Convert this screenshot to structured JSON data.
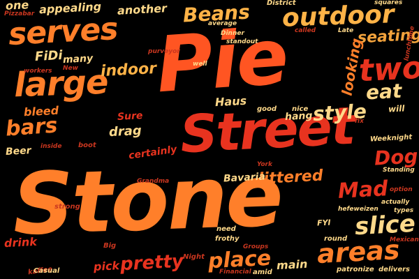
{
  "palette": {
    "background": "#000000",
    "orange": "#ff7f2a",
    "red_orange": "#ff5522",
    "red": "#e8331f",
    "light_yellow": "#ffd98a",
    "light_orange": "#ffb347",
    "dark_red": "#c9361f",
    "amber": "#f2a23c"
  },
  "words": {
    "stone": "Stone",
    "pie": "Pie",
    "street": "Street",
    "serves": "serves",
    "large": "large",
    "outdoor": "outdoor",
    "two": "two",
    "slice": "slice",
    "areas": "areas",
    "place": "place",
    "pretty": "pretty",
    "bars": "bars",
    "beans": "Beans",
    "mad": "Mad",
    "dog": "Dog",
    "style": "style",
    "eat": "eat",
    "littered": "littered",
    "indoor": "indoor",
    "seating": "seating",
    "looking": "looking",
    "district": "District",
    "another": "another",
    "appealing": "appealing",
    "one": "one",
    "pizzabar": "Pizzabar",
    "fidi": "FiDi",
    "many": "many",
    "workers": "workers",
    "new": "New",
    "bleed": "bleed",
    "sure": "Sure",
    "drag": "drag",
    "beer": "Beer",
    "inside": "inside",
    "boot": "boot",
    "certainly": "certainly",
    "grandma": "Grandma",
    "strong": "strong",
    "drink": "drink",
    "big": "Big",
    "pick": "pick",
    "casual": "Casual",
    "kaffee": "kaffee",
    "night": "Night",
    "financial": "Financial",
    "amid": "amid",
    "groups": "Groups",
    "frothy": "frothy",
    "need": "need",
    "round": "round",
    "fyi": "FYI",
    "mexican": "Mexican",
    "patronize": "patronize",
    "delivers": "delivers",
    "main": "main",
    "york": "York",
    "bavaria": "Bavaria",
    "haus": "Haus",
    "good": "good",
    "nice": "nice",
    "hang": "hang",
    "fix": "fix",
    "will": "will",
    "weeknight": "Weeknight",
    "standing": "Standing",
    "option": "option",
    "actually": "actually",
    "types": "types",
    "hefeweizen": "hefeweizen",
    "well": "well",
    "standout": "standout",
    "dinner": "Dinner",
    "purveyor": "purveyor",
    "average": "average",
    "called": "called",
    "late": "Late",
    "squares": "squares",
    "lunchtime": "lunchtime"
  }
}
